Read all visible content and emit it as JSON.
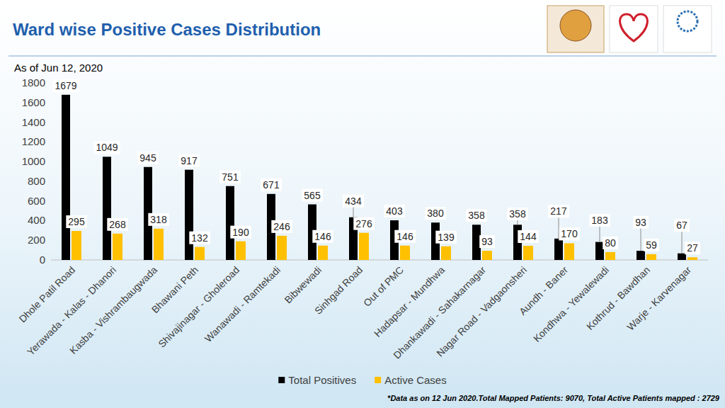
{
  "chart_data": {
    "type": "bar",
    "title": "Ward wise Positive Cases Distribution",
    "subtitle": "As of Jun 12, 2020",
    "annotations": [
      "*Data as on 12 Jun 2020.Total Mapped Patients: 9070, Total Active Patients mapped : 2729"
    ],
    "categories": [
      "Dhole Patil Road",
      "Yerawada - Kalas - Dhanori",
      "Kasba - Vishrambaugwada",
      "Bhawani Peth",
      "Shivajinagar - Gholeroad",
      "Wanawadi - Ramtekadi",
      "Bibwewadi",
      "Sinhgad Road",
      "Out of PMC",
      "Hadapsar - Mundhwa",
      "Dhankawadi - Sahakarnagar",
      "Nagar Road - Vadgaonsheri",
      "Aundh - Baner",
      "Kondhwa - Yewalewadi",
      "Kothrud - Bawdhan",
      "Warje - Karvenagar"
    ],
    "series": [
      {
        "name": "Total Positives",
        "color": "#000000",
        "values": [
          1679,
          1049,
          945,
          917,
          751,
          671,
          565,
          434,
          403,
          380,
          358,
          358,
          217,
          183,
          93,
          67
        ]
      },
      {
        "name": "Active Cases",
        "color": "#FFC000",
        "values": [
          295,
          268,
          318,
          132,
          190,
          246,
          146,
          276,
          146,
          139,
          93,
          144,
          170,
          80,
          59,
          27
        ]
      }
    ],
    "ylim": [
      0,
      1800
    ],
    "yticks": [
      0,
      200,
      400,
      600,
      800,
      1000,
      1200,
      1400,
      1600,
      1800
    ],
    "grid": false,
    "legend": "bottom",
    "data_labels": true
  }
}
